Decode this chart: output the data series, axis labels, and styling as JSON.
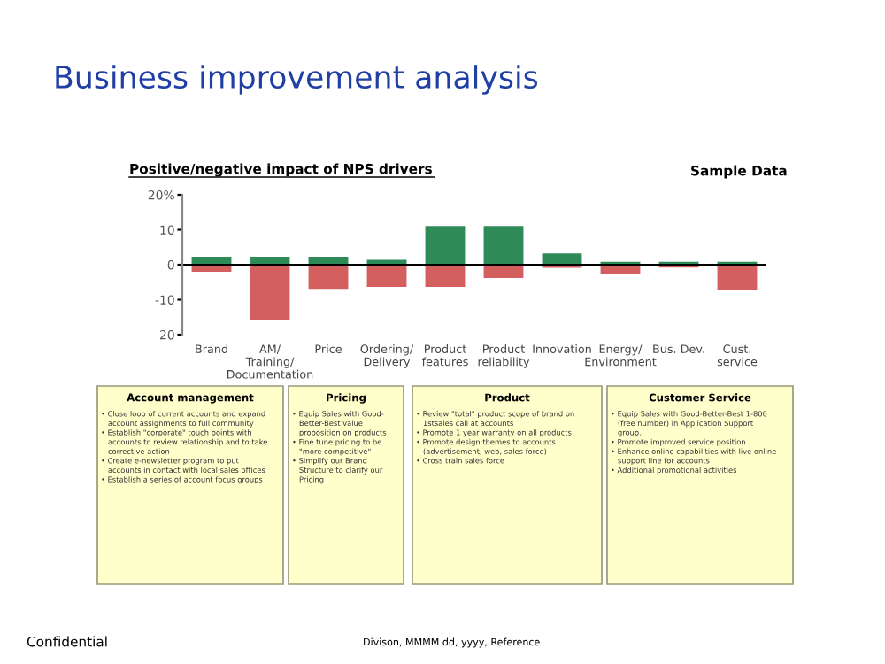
{
  "chart_data": {
    "type": "bar",
    "title": "Business improvement analysis",
    "subtitle": "Positive/negative impact of NPS drivers",
    "categories": [
      "Brand",
      "AM/\nTraining/\nDocumentation",
      "Price",
      "Ordering/\nDelivery",
      "Product\nfeatures",
      "Product\nreliability",
      "Innovation",
      "Energy/\nEnvironment",
      "Bus. Dev.",
      "Cust.\nservice"
    ],
    "series": [
      {
        "color": "#2e8b57",
        "values": [
          2.3,
          2.3,
          2.3,
          1.4,
          11.1,
          11.1,
          3.2,
          0.8,
          0.8,
          0.8
        ]
      },
      {
        "color": "#d45f5f",
        "values": [
          -2.0,
          -15.8,
          -6.9,
          -6.3,
          -6.3,
          -3.8,
          -0.9,
          -2.5,
          -0.8,
          -7.1
        ]
      }
    ],
    "stacked": true,
    "ylim": [
      -20,
      20
    ],
    "yticks": [
      {
        "value": 20,
        "label": "20%"
      },
      10,
      0,
      -10,
      -20
    ],
    "ref_lines": [
      {
        "axis": "y",
        "value": 0,
        "color": "#000000"
      }
    ],
    "grid": false,
    "legend": false,
    "annotations": [
      "Account management\n• Close loop of current accounts and expand\n   account assignments to full community\n• Establish \"corporate\" touch points with\n   accounts to review relationship and to take\n   corrective action\n• Create e-newsletter program to put\n   accounts in contact with local sales offices\n• Establish a series of account focus groups",
      "Pricing\n• Equip Sales with Good-\n   Better-Best value\n   proposition on products\n• Fine tune pricing to be\n   \"more competitive\"\n• Simplify our Brand\n   Structure to clarify our\n   Pricing",
      "Product\n• Review \"total\" product scope of brand on\n   1stsales call at accounts\n• Promote 1 year warranty on all products\n• Promote design themes to accounts\n   (advertisement, web, sales force)\n• Cross train sales force",
      "Customer Service\n• Equip Sales with Good-Better-Best 1-800\n   (free number) in Application Support\n   group.\n• Promote improved service position\n• Enhance online capabilities with live online\n   support line for accounts\n• Additional promotional activities",
      "Sample Data",
      "Confidential",
      "Divison, MMMM dd, yyyy, Reference"
    ]
  }
}
